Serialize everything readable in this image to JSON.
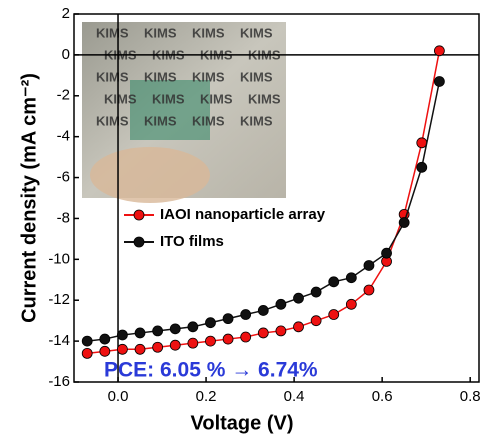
{
  "chart_data": {
    "type": "line",
    "x_label": "Voltage (V)",
    "y_label": "Current density (mA cm⁻²)",
    "annotation": "PCE: 6.05 % → 6.74%",
    "inset_text": "KIMS",
    "x": [
      -0.07,
      -0.03,
      0.01,
      0.05,
      0.09,
      0.13,
      0.17,
      0.21,
      0.25,
      0.29,
      0.33,
      0.37,
      0.41,
      0.45,
      0.49,
      0.53,
      0.57,
      0.61,
      0.65,
      0.69,
      0.73
    ],
    "series": [
      {
        "name": "IAOI nanoparticle array",
        "color": "#ee1111",
        "values": [
          -14.6,
          -14.5,
          -14.4,
          -14.4,
          -14.3,
          -14.2,
          -14.1,
          -14.0,
          -13.9,
          -13.8,
          -13.6,
          -13.5,
          -13.3,
          -13.0,
          -12.7,
          -12.2,
          -11.5,
          -10.1,
          -7.8,
          -4.3,
          0.2
        ]
      },
      {
        "name": "ITO films",
        "color": "#111111",
        "values": [
          -14.0,
          -13.9,
          -13.7,
          -13.6,
          -13.5,
          -13.4,
          -13.3,
          -13.1,
          -12.9,
          -12.7,
          -12.5,
          -12.2,
          -11.9,
          -11.6,
          -11.1,
          -10.9,
          -10.3,
          -9.7,
          -8.2,
          -5.5,
          -1.3
        ]
      }
    ],
    "xlim": [
      -0.1,
      0.82
    ],
    "ylim": [
      -16,
      2
    ],
    "xticks": [
      {
        "value": 0,
        "label": "0.0"
      },
      0.2,
      0.4,
      0.6,
      0.8
    ],
    "yticks": [
      -16,
      -14,
      -12,
      -10,
      -8,
      -6,
      -4,
      -2,
      0,
      2
    ]
  }
}
